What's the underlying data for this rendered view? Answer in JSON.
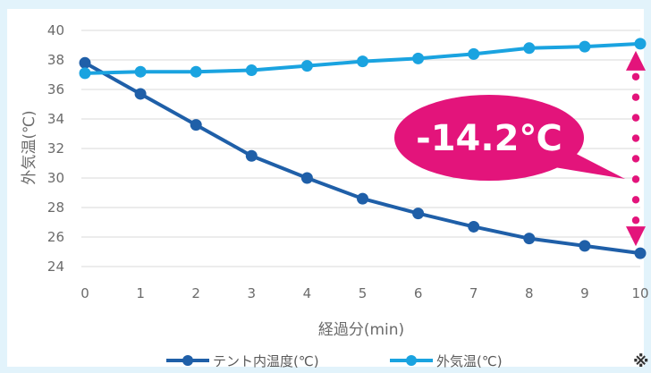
{
  "chart_data": {
    "type": "line",
    "title": "",
    "xlabel": "経過分(min)",
    "ylabel": "外気温(℃)",
    "x": [
      0,
      1,
      2,
      3,
      4,
      5,
      6,
      7,
      8,
      9,
      10
    ],
    "xticks": [
      "0",
      "1",
      "2",
      "3",
      "4",
      "5",
      "6",
      "7",
      "8",
      "9",
      "10"
    ],
    "yticks": [
      "24",
      "26",
      "28",
      "30",
      "32",
      "34",
      "36",
      "38",
      "40"
    ],
    "ylim": [
      24,
      40
    ],
    "grid": true,
    "legend": "bottom",
    "series": [
      {
        "name": "テント内温度(℃)",
        "color": "#1f5fa8",
        "values": [
          37.8,
          35.7,
          33.6,
          31.5,
          30.0,
          28.6,
          27.6,
          26.7,
          25.9,
          25.4,
          24.9
        ]
      },
      {
        "name": "外気温(℃)",
        "color": "#1aa3e0",
        "values": [
          37.1,
          37.2,
          37.2,
          37.3,
          37.6,
          37.9,
          38.1,
          38.4,
          38.8,
          38.9,
          39.1
        ]
      }
    ],
    "annotation": {
      "text": "-14.2℃",
      "color": "#e3147b"
    },
    "note": "※"
  }
}
